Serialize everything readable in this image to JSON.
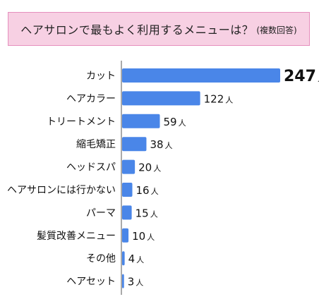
{
  "title": {
    "main": "ヘアサロンで最もよく利用するメニューは？",
    "sub": "(複数回答)"
  },
  "chart_data": {
    "type": "bar",
    "orientation": "horizontal",
    "categories": [
      "カット",
      "ヘアカラー",
      "トリートメント",
      "縮毛矯正",
      "ヘッドスパ",
      "ヘアサロンには行かない",
      "パーマ",
      "髪質改善メニュー",
      "その他",
      "ヘアセット"
    ],
    "values": [
      247,
      122,
      59,
      38,
      20,
      16,
      15,
      10,
      4,
      3
    ],
    "unit": "人",
    "xlim": [
      0,
      247
    ],
    "grid": false,
    "legend": "none",
    "bar_color": "#4a86e8",
    "axis_color": "#555555"
  }
}
